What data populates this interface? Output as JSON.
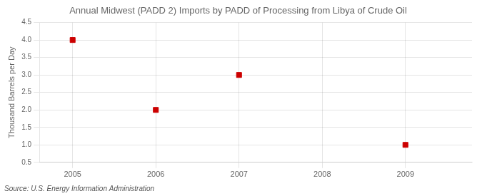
{
  "chart_data": {
    "type": "scatter",
    "title": "Annual Midwest (PADD 2) Imports by PADD of Processing from Libya of Crude Oil",
    "ylabel": "Thousand Barrels per Day",
    "source": "Source: U.S. Energy Information Administration",
    "x": [
      2005,
      2006,
      2007,
      2009
    ],
    "values": [
      4.0,
      2.0,
      3.0,
      1.0
    ],
    "color": "#cc0000",
    "marker": "square",
    "xlim": [
      2004.6,
      2009.8
    ],
    "ylim": [
      0.5,
      4.5
    ],
    "xticks": [
      2005,
      2006,
      2007,
      2008,
      2009
    ],
    "yticks": [
      0.5,
      {
        "value": 1,
        "label": "1.0"
      },
      1.5,
      {
        "value": 2,
        "label": "2.0"
      },
      2.5,
      {
        "value": 3,
        "label": "3.0"
      },
      3.5,
      {
        "value": 4,
        "label": "4.0"
      },
      4.5
    ],
    "grid": true
  }
}
